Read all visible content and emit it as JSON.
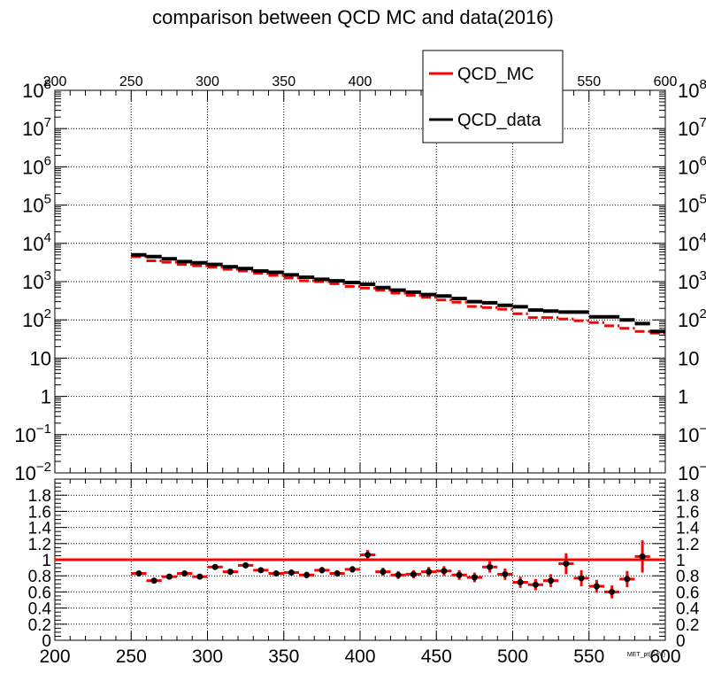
{
  "title": "comparison between QCD MC and data(2016)",
  "legend": {
    "mc_label": "QCD_MC",
    "data_label": "QCD_data"
  },
  "colors": {
    "mc": "#ff0000",
    "data": "#000000",
    "grid": "#000000"
  },
  "chart_data": [
    {
      "type": "line",
      "panel": "main",
      "xlim": [
        200,
        600
      ],
      "x_ticks_top": [
        "200",
        "250",
        "300",
        "350",
        "400",
        "450",
        "500",
        "550",
        "600"
      ],
      "ylim": [
        0.01,
        100000000
      ],
      "yscale": "log",
      "y_tick_labels": [
        {
          "base": "10",
          "exp": "8"
        },
        {
          "base": "10",
          "exp": "7"
        },
        {
          "base": "10",
          "exp": "6"
        },
        {
          "base": "10",
          "exp": "5"
        },
        {
          "base": "10",
          "exp": "4"
        },
        {
          "base": "10",
          "exp": "3"
        },
        {
          "base": "10",
          "exp": "2"
        },
        {
          "base": "10",
          "exp": ""
        },
        {
          "base": "1",
          "exp": ""
        },
        {
          "base": "10",
          "exp": "−1"
        },
        {
          "base": "10",
          "exp": "−2"
        }
      ],
      "grid": true,
      "legend_position": "top-right",
      "x": [
        255,
        265,
        275,
        285,
        295,
        305,
        315,
        325,
        335,
        345,
        355,
        365,
        375,
        385,
        395,
        405,
        415,
        425,
        435,
        445,
        455,
        465,
        475,
        485,
        495,
        505,
        515,
        525,
        535,
        545,
        555,
        565,
        575,
        585,
        595
      ],
      "series": [
        {
          "name": "QCD_MC",
          "values": [
            4500,
            3500,
            3200,
            2800,
            2600,
            2400,
            2100,
            1900,
            1650,
            1450,
            1250,
            1050,
            1000,
            880,
            750,
            680,
            600,
            500,
            440,
            390,
            330,
            290,
            225,
            210,
            190,
            145,
            115,
            115,
            105,
            95,
            85,
            70,
            60,
            50,
            45
          ]
        },
        {
          "name": "QCD_data",
          "values": [
            5000,
            4500,
            3950,
            3350,
            3100,
            2800,
            2450,
            2200,
            1900,
            1750,
            1500,
            1300,
            1150,
            1050,
            950,
            850,
            700,
            600,
            530,
            460,
            420,
            360,
            300,
            280,
            240,
            220,
            180,
            170,
            160,
            160,
            120,
            120,
            100,
            80,
            50
          ]
        }
      ]
    },
    {
      "type": "scatter",
      "panel": "ratio",
      "xlabel": "MET_pt(GeV)",
      "xlim": [
        200,
        600
      ],
      "x_ticks": [
        "200",
        "250",
        "300",
        "350",
        "400",
        "450",
        "500",
        "550",
        "600"
      ],
      "ylim": [
        0,
        2
      ],
      "y_ticks": [
        "0",
        "0.2",
        "0.4",
        "0.6",
        "0.8",
        "1",
        "1.2",
        "1.4",
        "1.6",
        "1.8"
      ],
      "reference_line": 1,
      "grid": true,
      "x": [
        255,
        265,
        275,
        285,
        295,
        305,
        315,
        325,
        335,
        345,
        355,
        365,
        375,
        385,
        395,
        405,
        415,
        425,
        435,
        445,
        455,
        465,
        475,
        485,
        495,
        505,
        515,
        525,
        535,
        545,
        555,
        565,
        575,
        585
      ],
      "values": [
        0.83,
        0.74,
        0.79,
        0.83,
        0.79,
        0.91,
        0.85,
        0.93,
        0.87,
        0.83,
        0.84,
        0.81,
        0.87,
        0.83,
        0.88,
        1.06,
        0.85,
        0.81,
        0.82,
        0.85,
        0.86,
        0.81,
        0.78,
        0.91,
        0.82,
        0.72,
        0.69,
        0.74,
        0.95,
        0.77,
        0.67,
        0.6,
        0.76,
        1.04
      ],
      "errors": [
        0.02,
        0.02,
        0.02,
        0.02,
        0.02,
        0.03,
        0.03,
        0.03,
        0.03,
        0.03,
        0.03,
        0.04,
        0.04,
        0.04,
        0.04,
        0.06,
        0.05,
        0.05,
        0.05,
        0.06,
        0.06,
        0.06,
        0.06,
        0.07,
        0.07,
        0.07,
        0.07,
        0.08,
        0.13,
        0.1,
        0.08,
        0.08,
        0.1,
        0.2
      ]
    }
  ]
}
